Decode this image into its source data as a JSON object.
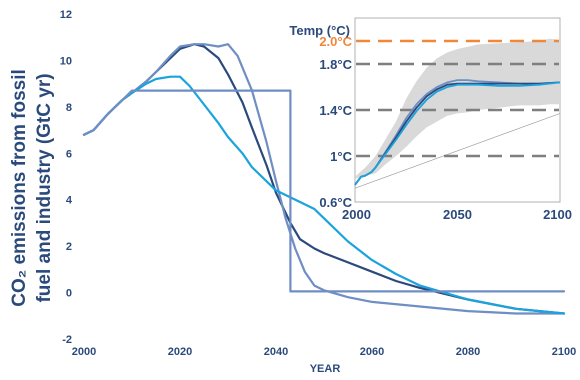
{
  "colors": {
    "dark": "#2b4a7c",
    "medium": "#6f8ec4",
    "light": "#1aa3dd",
    "axis_text": "#2b4a7c",
    "highlight": "#f0883a",
    "dash": "#7f7f7f",
    "band": "#d9d9d9"
  },
  "chart_data": [
    {
      "type": "line",
      "xlabel": "YEAR",
      "ylabel_line1": "CO₂ emissions from fossil",
      "ylabel_line2": "fuel and industry (GtC yr)",
      "xlim": [
        2000,
        2100
      ],
      "ylim": [
        -2,
        12
      ],
      "xticks": [
        "2000",
        "2020",
        "2040",
        "2060",
        "2080",
        "2100"
      ],
      "yticks": [
        "-2",
        "0",
        "2",
        "4",
        "6",
        "8",
        "10",
        "12"
      ],
      "series": [
        {
          "color": "dark",
          "x": [
            2000,
            2002,
            2005,
            2008,
            2010,
            2013,
            2015,
            2018,
            2020,
            2023,
            2025,
            2028,
            2030,
            2033,
            2035,
            2038,
            2040,
            2043,
            2045,
            2048,
            2050,
            2055,
            2060,
            2065,
            2070,
            2080,
            2090,
            2100
          ],
          "y": [
            6.8,
            7.0,
            7.7,
            8.3,
            8.6,
            9.1,
            9.5,
            10.1,
            10.5,
            10.7,
            10.6,
            10.1,
            9.4,
            8.2,
            7.1,
            5.5,
            4.3,
            3.0,
            2.3,
            1.9,
            1.7,
            1.3,
            0.9,
            0.5,
            0.2,
            -0.3,
            -0.7,
            -0.9
          ]
        },
        {
          "color": "medium",
          "x": [
            2000,
            2002,
            2005,
            2008,
            2010,
            2013,
            2015,
            2018,
            2020,
            2023,
            2025,
            2028,
            2030,
            2032,
            2035,
            2038,
            2040,
            2042,
            2044,
            2046,
            2048,
            2050,
            2055,
            2060,
            2070,
            2080,
            2090,
            2100
          ],
          "y": [
            6.8,
            7.0,
            7.7,
            8.3,
            8.6,
            9.1,
            9.5,
            10.2,
            10.6,
            10.7,
            10.7,
            10.6,
            10.7,
            10.2,
            8.7,
            6.5,
            4.8,
            3.2,
            1.9,
            0.9,
            0.3,
            0.1,
            -0.2,
            -0.4,
            -0.6,
            -0.8,
            -0.9,
            -0.9
          ]
        },
        {
          "color": "light",
          "x": [
            2000,
            2002,
            2005,
            2008,
            2010,
            2013,
            2015,
            2018,
            2020,
            2022,
            2025,
            2028,
            2030,
            2033,
            2035,
            2040,
            2045,
            2048,
            2050,
            2055,
            2060,
            2065,
            2070,
            2080,
            2090,
            2100
          ],
          "y": [
            6.8,
            7.0,
            7.7,
            8.3,
            8.6,
            9.0,
            9.2,
            9.3,
            9.3,
            8.9,
            8.1,
            7.3,
            6.7,
            6.0,
            5.4,
            4.4,
            3.9,
            3.6,
            3.2,
            2.2,
            1.4,
            0.8,
            0.3,
            -0.3,
            -0.7,
            -0.9
          ]
        },
        {
          "color": "medium",
          "x": [
            2000,
            2002,
            2005,
            2008,
            2010,
            2043,
            2043,
            2100
          ],
          "y": [
            6.8,
            7.0,
            7.7,
            8.3,
            8.7,
            8.7,
            0.05,
            0.05
          ]
        }
      ]
    },
    {
      "type": "line",
      "title": "Temp (°C)",
      "xlim": [
        2000,
        2100
      ],
      "ylim": [
        0.6,
        2.2
      ],
      "xticks": [
        "2000",
        "2050",
        "2100"
      ],
      "reference_lines": [
        {
          "label": "2.0°C",
          "value": 2.0,
          "color": "highlight"
        },
        {
          "label": "1.8°C",
          "value": 1.8,
          "color": "dash"
        },
        {
          "label": "1.4°C",
          "value": 1.4,
          "color": "dash"
        },
        {
          "label": "1°C",
          "value": 1.0,
          "color": "dash"
        },
        {
          "label": "0.6°C",
          "value": 0.6,
          "color": "dash"
        }
      ],
      "band": {
        "x": [
          2000,
          2005,
          2010,
          2015,
          2020,
          2025,
          2030,
          2035,
          2040,
          2045,
          2050,
          2055,
          2060,
          2070,
          2080,
          2090,
          2095,
          2100
        ],
        "upper": [
          0.82,
          0.9,
          1.0,
          1.15,
          1.3,
          1.5,
          1.65,
          1.77,
          1.85,
          1.9,
          1.93,
          1.95,
          1.97,
          1.98,
          1.99,
          2.0,
          2.02,
          2.01
        ],
        "lower": [
          0.8,
          0.83,
          0.85,
          0.93,
          1.0,
          1.08,
          1.17,
          1.25,
          1.3,
          1.35,
          1.37,
          1.38,
          1.4,
          1.42,
          1.44,
          1.44,
          1.45,
          1.45
        ]
      },
      "thin_line": {
        "x": [
          2000,
          2100
        ],
        "y": [
          0.72,
          1.37
        ]
      },
      "series": [
        {
          "color": "medium",
          "x": [
            2000,
            2003,
            2005,
            2008,
            2010,
            2015,
            2020,
            2025,
            2030,
            2035,
            2040,
            2045,
            2050,
            2055,
            2060,
            2070,
            2080,
            2090,
            2100
          ],
          "y": [
            0.75,
            0.82,
            0.83,
            0.86,
            0.9,
            1.04,
            1.18,
            1.33,
            1.45,
            1.54,
            1.6,
            1.64,
            1.66,
            1.66,
            1.65,
            1.64,
            1.63,
            1.63,
            1.64
          ]
        },
        {
          "color": "dark",
          "x": [
            2000,
            2003,
            2005,
            2008,
            2010,
            2015,
            2020,
            2025,
            2030,
            2035,
            2040,
            2045,
            2050,
            2055,
            2060,
            2070,
            2080,
            2090,
            2100
          ],
          "y": [
            0.75,
            0.82,
            0.83,
            0.86,
            0.9,
            1.03,
            1.16,
            1.3,
            1.42,
            1.52,
            1.58,
            1.62,
            1.63,
            1.63,
            1.63,
            1.63,
            1.63,
            1.63,
            1.64
          ]
        },
        {
          "color": "light",
          "x": [
            2000,
            2003,
            2005,
            2008,
            2010,
            2015,
            2020,
            2025,
            2030,
            2035,
            2040,
            2045,
            2050,
            2055,
            2060,
            2070,
            2080,
            2090,
            2100
          ],
          "y": [
            0.75,
            0.82,
            0.83,
            0.86,
            0.9,
            1.02,
            1.14,
            1.27,
            1.39,
            1.49,
            1.56,
            1.6,
            1.62,
            1.62,
            1.62,
            1.61,
            1.61,
            1.62,
            1.64
          ]
        }
      ]
    }
  ]
}
